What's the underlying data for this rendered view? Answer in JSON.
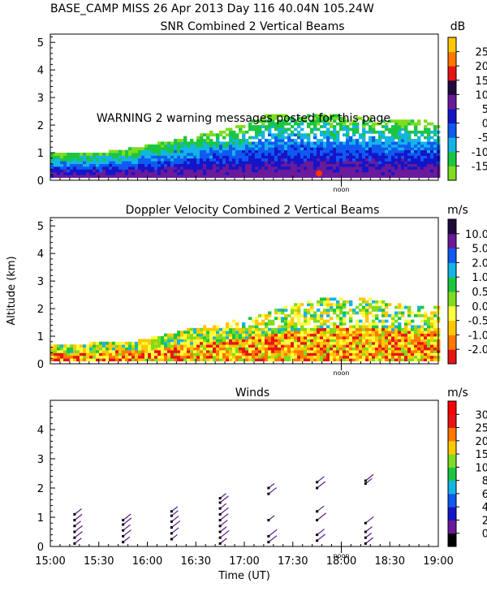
{
  "header": "BASE_CAMP MISS  26 Apr 2013 Day 116 40.04N 105.24W",
  "warning": "WARNING  2 warning messages posted for this page",
  "noon_label": "noon",
  "chart_data": [
    {
      "type": "heatmap",
      "title": "SNR Combined 2 Vertical Beams",
      "unit": "dB",
      "ylabel": "",
      "ylim": [
        0,
        5.3
      ],
      "yticks": [
        "0",
        "1",
        "2",
        "3",
        "4",
        "5"
      ],
      "xlim_hours": [
        15.0,
        19.0
      ],
      "colorbar": {
        "labels": [
          "-15",
          "-10",
          "-5",
          "0",
          "5",
          "10",
          "15",
          "20",
          "25"
        ],
        "colors": [
          "#7fdc1e",
          "#1bc640",
          "#14b4e6",
          "#0f5af0",
          "#1414c8",
          "#6a1a9a",
          "#1e0a3c",
          "#e81414",
          "#ff7800",
          "#ffc800"
        ]
      },
      "echo_top_profile": {
        "x": [
          15.0,
          15.3,
          15.6,
          15.9,
          16.2,
          16.4,
          16.7,
          17.0,
          17.2,
          17.5,
          17.8,
          18.0,
          18.3,
          18.6,
          18.9,
          19.0
        ],
        "top": [
          0.9,
          0.95,
          1.0,
          1.15,
          1.4,
          1.55,
          1.75,
          2.0,
          2.3,
          2.4,
          2.35,
          2.3,
          2.2,
          2.15,
          2.1,
          2.1
        ]
      },
      "hot_spot": {
        "x": 17.77,
        "y": 0.25,
        "color": "#ff3300"
      }
    },
    {
      "type": "heatmap",
      "title": "Doppler Velocity Combined 2 Vertical Beams",
      "unit": "m/s",
      "ylabel": "Altitude (km)",
      "ylim": [
        0,
        5.3
      ],
      "yticks": [
        "0",
        "1",
        "2",
        "3",
        "4",
        "5"
      ],
      "xlim_hours": [
        15.0,
        19.0
      ],
      "colorbar": {
        "labels": [
          "-2.0",
          "-1.0",
          "-0.5",
          "0.0",
          "0.5",
          "1.0",
          "2.0",
          "5.0",
          "10.0"
        ],
        "colors": [
          "#e81414",
          "#ff7800",
          "#ffc800",
          "#ffff3c",
          "#7fdc1e",
          "#1bc640",
          "#14b4e6",
          "#0f5af0",
          "#6a1a9a",
          "#1e0a3c"
        ]
      },
      "echo_top_profile": {
        "x": [
          15.0,
          15.4,
          15.8,
          16.1,
          16.4,
          16.7,
          17.0,
          17.3,
          17.5,
          17.8,
          18.0,
          18.3,
          18.6,
          18.9,
          19.0
        ],
        "top": [
          0.65,
          0.7,
          0.75,
          0.95,
          1.2,
          1.4,
          1.6,
          1.9,
          2.1,
          2.35,
          2.4,
          2.3,
          2.1,
          2.1,
          2.1
        ]
      }
    },
    {
      "type": "scatter",
      "title": "Winds",
      "unit": "m/s",
      "ylabel": "",
      "xlabel": "Time (UT)",
      "ylim": [
        0,
        5.0
      ],
      "yticks": [
        "0",
        "1",
        "2",
        "3",
        "4"
      ],
      "xlim_hours": [
        15.0,
        19.0
      ],
      "xticks": [
        "15:00",
        "15:30",
        "16:00",
        "16:30",
        "17:00",
        "17:30",
        "18:00",
        "18:30",
        "19:00"
      ],
      "colorbar": {
        "labels": [
          "0",
          "2",
          "4",
          "6",
          "8",
          "10",
          "15",
          "20",
          "25",
          "30"
        ],
        "colors": [
          "#000000",
          "#6a1a9a",
          "#1414c8",
          "#0f5af0",
          "#14b4e6",
          "#1bc640",
          "#7fdc1e",
          "#ffc800",
          "#ff7800",
          "#e81414",
          "#ff0000"
        ]
      },
      "profiles": [
        {
          "time": 15.25,
          "heights": [
            0.1,
            0.3,
            0.5,
            0.7,
            0.9,
            1.1
          ]
        },
        {
          "time": 15.75,
          "heights": [
            0.15,
            0.35,
            0.55,
            0.75,
            0.9
          ]
        },
        {
          "time": 16.25,
          "heights": [
            0.25,
            0.45,
            0.65,
            0.85,
            1.05,
            1.2
          ]
        },
        {
          "time": 16.75,
          "heights": [
            0.1,
            0.3,
            0.5,
            0.7,
            0.9,
            1.1,
            1.3,
            1.5,
            1.65
          ]
        },
        {
          "time": 17.25,
          "heights": [
            0.15,
            0.35,
            0.9,
            1.8,
            2.0
          ]
        },
        {
          "time": 17.75,
          "heights": [
            0.2,
            0.4,
            0.9,
            1.2,
            2.0,
            2.2
          ]
        },
        {
          "time": 18.25,
          "heights": [
            0.1,
            0.3,
            0.5,
            0.8,
            2.15,
            2.25
          ]
        }
      ]
    }
  ]
}
